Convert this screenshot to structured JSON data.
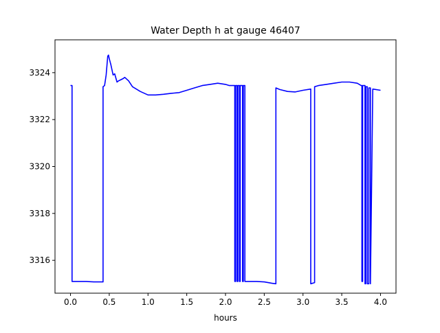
{
  "chart_data": {
    "type": "line",
    "title": "Water Depth h at gauge 46407",
    "xlabel": "hours",
    "ylabel": "",
    "xlim": [
      -0.2,
      4.2
    ],
    "ylim": [
      3314.6,
      3325.4
    ],
    "xticks": [
      0.0,
      0.5,
      1.0,
      1.5,
      2.0,
      2.5,
      3.0,
      3.5,
      4.0
    ],
    "xtick_labels": [
      "0.0",
      "0.5",
      "1.0",
      "1.5",
      "2.0",
      "2.5",
      "3.0",
      "3.5",
      "4.0"
    ],
    "yticks": [
      3316,
      3318,
      3320,
      3322,
      3324
    ],
    "ytick_labels": [
      "3316",
      "3318",
      "3320",
      "3322",
      "3324"
    ],
    "grid": false,
    "legend": "none",
    "series": [
      {
        "color": "#0000ff",
        "x": [
          0.0,
          0.02,
          0.02,
          0.05,
          0.1,
          0.2,
          0.3,
          0.4,
          0.42,
          0.42,
          0.44,
          0.46,
          0.48,
          0.49,
          0.5,
          0.52,
          0.53,
          0.55,
          0.57,
          0.6,
          0.62,
          0.65,
          0.68,
          0.7,
          0.75,
          0.8,
          0.9,
          1.0,
          1.1,
          1.2,
          1.3,
          1.4,
          1.5,
          1.6,
          1.7,
          1.8,
          1.9,
          2.0,
          2.05,
          2.1,
          2.12,
          2.12,
          2.13,
          2.13,
          2.15,
          2.15,
          2.16,
          2.16,
          2.18,
          2.18,
          2.19,
          2.19,
          2.22,
          2.22,
          2.23,
          2.23,
          2.25,
          2.25,
          2.3,
          2.4,
          2.5,
          2.6,
          2.65,
          2.65,
          2.7,
          2.8,
          2.9,
          3.0,
          3.1,
          3.1,
          3.15,
          3.15,
          3.2,
          3.3,
          3.4,
          3.5,
          3.6,
          3.7,
          3.75,
          3.76,
          3.76,
          3.77,
          3.77,
          3.8,
          3.8,
          3.81,
          3.81,
          3.83,
          3.83,
          3.85,
          3.85,
          3.87,
          3.87,
          3.9,
          4.0
        ],
        "y": [
          3323.45,
          3323.45,
          3315.1,
          3315.1,
          3315.1,
          3315.1,
          3315.08,
          3315.08,
          3315.08,
          3323.4,
          3323.45,
          3323.9,
          3324.7,
          3324.75,
          3324.6,
          3324.35,
          3324.2,
          3323.9,
          3323.95,
          3323.6,
          3323.65,
          3323.7,
          3323.75,
          3323.8,
          3323.65,
          3323.4,
          3323.2,
          3323.05,
          3323.05,
          3323.08,
          3323.12,
          3323.15,
          3323.25,
          3323.35,
          3323.45,
          3323.5,
          3323.55,
          3323.5,
          3323.45,
          3323.45,
          3323.45,
          3315.1,
          3315.1,
          3323.45,
          3323.45,
          3315.1,
          3315.1,
          3323.45,
          3323.45,
          3315.1,
          3315.1,
          3323.45,
          3323.45,
          3315.1,
          3315.1,
          3323.45,
          3323.45,
          3315.1,
          3315.1,
          3315.1,
          3315.08,
          3315.02,
          3315.0,
          3323.35,
          3323.28,
          3323.2,
          3323.18,
          3323.25,
          3323.3,
          3315.0,
          3315.05,
          3323.4,
          3323.45,
          3323.5,
          3323.55,
          3323.6,
          3323.6,
          3323.55,
          3323.45,
          3323.45,
          3315.1,
          3315.1,
          3323.45,
          3323.45,
          3315.0,
          3315.0,
          3323.4,
          3323.4,
          3315.0,
          3315.0,
          3323.35,
          3323.35,
          3315.0,
          3323.3,
          3323.25
        ]
      }
    ]
  }
}
